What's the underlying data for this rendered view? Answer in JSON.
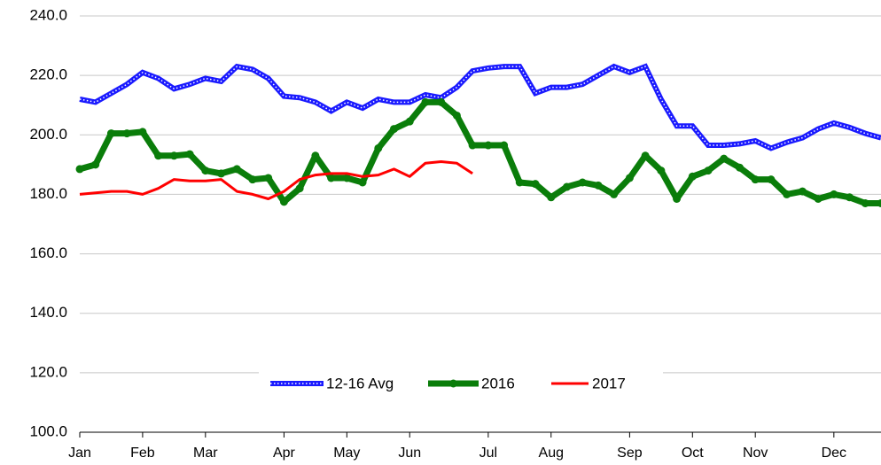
{
  "chart_data": {
    "type": "line",
    "categories": [
      "Jan",
      null,
      null,
      null,
      "Feb",
      null,
      null,
      null,
      "Mar",
      null,
      null,
      null,
      null,
      "Apr",
      null,
      null,
      null,
      "May",
      null,
      null,
      null,
      "Jun",
      null,
      null,
      null,
      null,
      "Jul",
      null,
      null,
      null,
      "Aug",
      null,
      null,
      null,
      null,
      "Sep",
      null,
      null,
      null,
      "Oct",
      null,
      null,
      null,
      "Nov",
      null,
      null,
      null,
      null,
      "Dec",
      null,
      null,
      null
    ],
    "series": [
      {
        "name": "12-16 Avg",
        "color": "#1a1aff",
        "values": [
          212,
          211,
          214,
          217,
          221,
          219,
          215.5,
          217,
          219,
          218,
          223,
          222,
          219,
          213,
          212.5,
          211,
          208,
          211,
          209,
          212,
          211,
          211,
          213.5,
          212.5,
          216,
          221.5,
          222.5,
          223,
          223,
          214,
          216,
          216,
          217,
          220,
          223,
          221,
          223,
          212,
          203,
          203,
          196.5,
          196.5,
          197,
          198,
          195.5,
          197.5,
          199,
          202,
          204,
          202.5,
          200.5,
          199
        ]
      },
      {
        "name": "2016",
        "color": "#0a7d0a",
        "values": [
          188.5,
          190,
          200.5,
          200.5,
          201,
          193,
          193,
          193.5,
          188,
          187,
          188.5,
          185,
          185.5,
          177.5,
          182,
          193,
          185.5,
          185.5,
          184,
          195.5,
          202,
          204.5,
          211,
          211,
          206.5,
          196.5,
          196.5,
          196.5,
          184,
          183.5,
          179,
          182.5,
          184,
          183,
          180,
          185.5,
          193,
          188,
          178.5,
          186,
          188,
          192,
          189,
          185,
          185,
          180,
          181,
          178.5,
          180,
          179,
          177,
          177
        ]
      },
      {
        "name": "2017",
        "color": "#ff0000",
        "values": [
          180,
          180.5,
          181,
          181,
          180,
          182,
          185,
          184.5,
          184.5,
          185,
          181,
          180,
          178.5,
          181,
          185,
          186.5,
          187,
          187,
          186,
          186.5,
          188.5,
          186,
          190.5,
          191,
          190.5,
          187,
          null,
          null,
          null,
          null,
          null,
          null,
          null,
          null,
          null,
          null,
          null,
          null,
          null,
          null,
          null,
          null,
          null,
          null,
          null,
          null,
          null,
          null,
          null,
          null,
          null,
          null
        ]
      }
    ],
    "ylim": [
      100,
      240
    ],
    "yticks": [
      {
        "value": 100,
        "label": "100.0"
      },
      {
        "value": 120,
        "label": "120.0"
      },
      {
        "value": 140,
        "label": "140.0"
      },
      {
        "value": 160,
        "label": "160.0"
      },
      {
        "value": 180,
        "label": "180.0"
      },
      {
        "value": 200,
        "label": "200.0"
      },
      {
        "value": 220,
        "label": "220.0"
      },
      {
        "value": 240,
        "label": "240.0"
      }
    ],
    "grid": true,
    "legend": "bottom"
  }
}
